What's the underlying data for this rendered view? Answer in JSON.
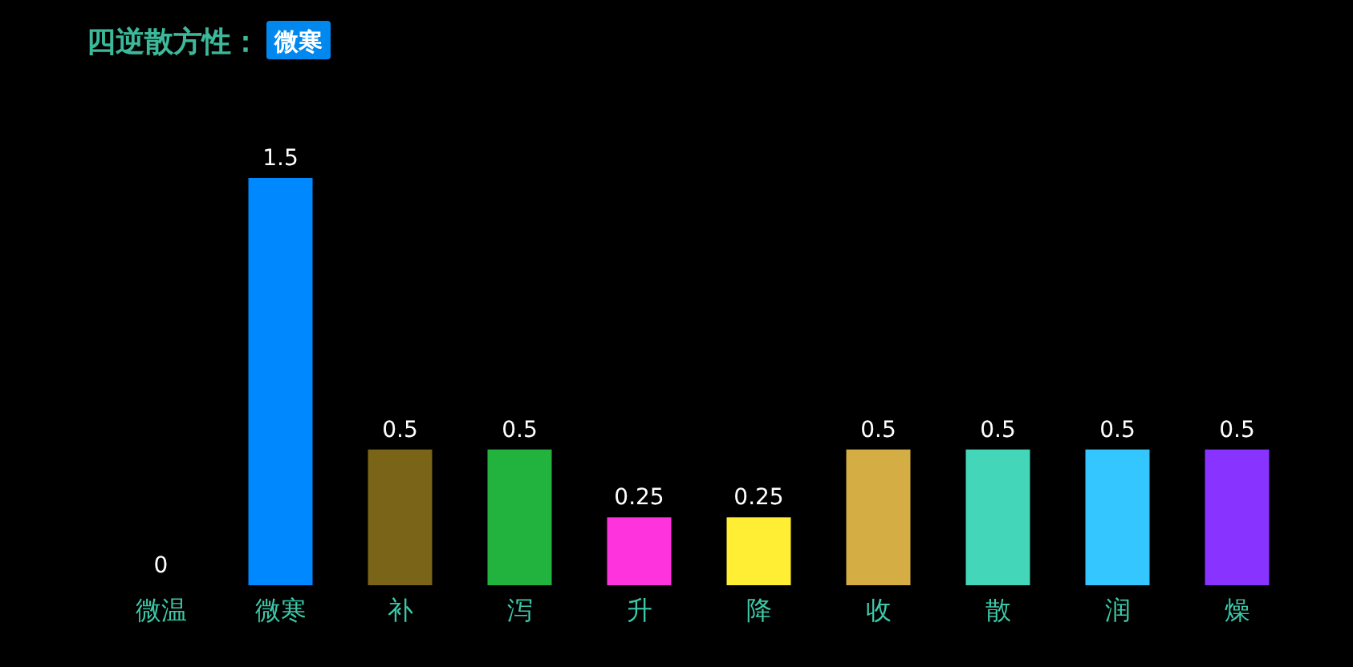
{
  "chart_data": {
    "type": "bar",
    "title": "四逆散方性：",
    "subtitle": "微寒",
    "categories": [
      "微温",
      "微寒",
      "补",
      "泻",
      "升",
      "降",
      "收",
      "散",
      "润",
      "燥"
    ],
    "values": [
      0,
      1.5,
      0.5,
      0.5,
      0.25,
      0.25,
      0.5,
      0.5,
      0.5,
      0.5
    ],
    "colors": [
      "#3b8ede",
      "#0088ff",
      "#7a6418",
      "#22b33f",
      "#ff33dd",
      "#ffee33",
      "#d4ae44",
      "#44d6b8",
      "#33c6ff",
      "#8833ff"
    ],
    "data_labels": true
  }
}
